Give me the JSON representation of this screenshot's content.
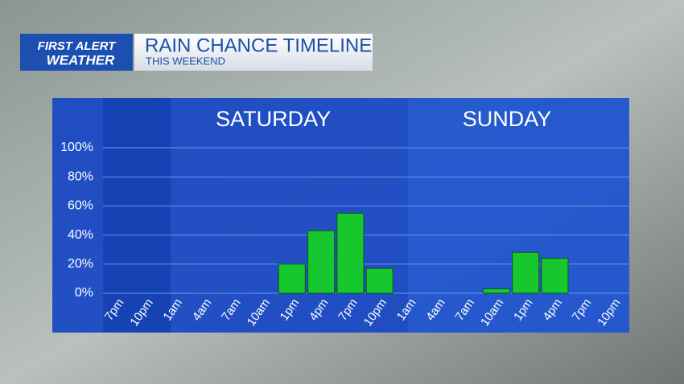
{
  "brand": [
    "FIRST ALERT",
    "WEATHER"
  ],
  "chart_data": {
    "type": "bar",
    "title": "RAIN CHANCE TIMELINE",
    "subtitle": "THIS WEEKEND",
    "annotations": [
      "SATURDAY",
      "SUNDAY"
    ],
    "categories": [
      "7pm",
      "10pm",
      "1am",
      "4am",
      "7am",
      "10am",
      "1pm",
      "4pm",
      "7pm",
      "10pm",
      "1am",
      "4am",
      "7am",
      "10am",
      "1pm",
      "4pm",
      "7pm",
      "10pm"
    ],
    "values": [
      null,
      null,
      null,
      null,
      null,
      null,
      20,
      43,
      55,
      17,
      null,
      null,
      null,
      3,
      28,
      24,
      null,
      null
    ],
    "color": "#16c72e",
    "ylim": [
      0,
      100
    ],
    "yticks": [
      {
        "value": 0,
        "label": "0%"
      },
      {
        "value": 20,
        "label": "20%"
      },
      {
        "value": 40,
        "label": "40%"
      },
      {
        "value": 60,
        "label": "60%"
      },
      {
        "value": 80,
        "label": "80%"
      },
      {
        "value": 100,
        "label": "100%"
      }
    ],
    "grid": true
  }
}
